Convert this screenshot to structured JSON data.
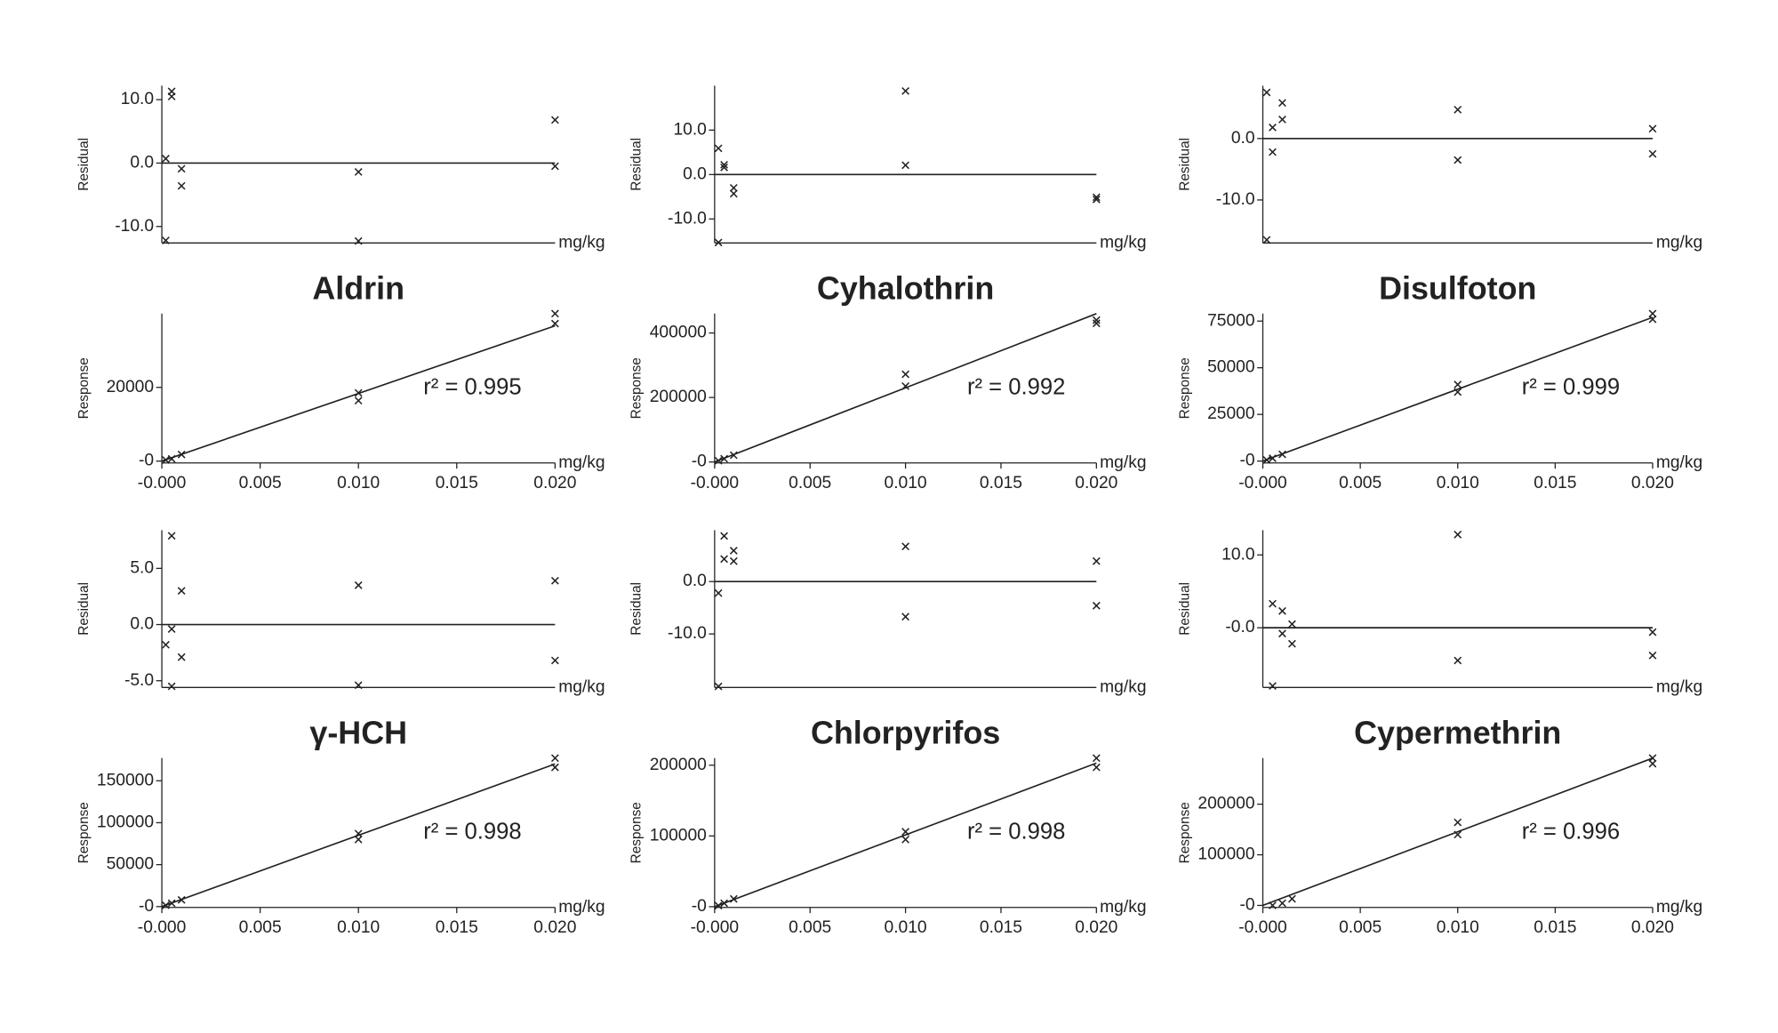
{
  "chart_data": [
    {
      "type": "scatter",
      "xlabel": "mg/kg",
      "ylabel": "Residual",
      "xlim": [
        0,
        0.02
      ],
      "ylim": [
        -12.6,
        12.2
      ],
      "yticks": [
        {
          "value": 10,
          "label": "10.0"
        },
        {
          "value": 0,
          "label": "0.0"
        },
        {
          "value": -10,
          "label": "-10.0"
        }
      ],
      "series": [
        {
          "color": "#222",
          "x": [
            0.0002,
            0.0002,
            0.0005,
            0.0005,
            0.001,
            0.001,
            0.01,
            0.01,
            0.02,
            0.02
          ],
          "values": [
            0.7,
            -12.2,
            11.3,
            10.5,
            -0.9,
            -3.6,
            -1.4,
            -12.3,
            6.8,
            -0.5
          ]
        }
      ],
      "fit": {
        "x": [
          0,
          0.02
        ],
        "values": [
          0,
          0
        ]
      }
    },
    {
      "type": "scatter",
      "title": "Aldrin",
      "annotation": "r² = 0.995",
      "xlabel": "mg/kg",
      "ylabel": "Response",
      "xlim": [
        0,
        0.02
      ],
      "ylim": [
        -500,
        40000
      ],
      "xticks": [
        {
          "value": 0,
          "label": "-0.000"
        },
        {
          "value": 0.005,
          "label": "0.005"
        },
        {
          "value": 0.01,
          "label": "0.010"
        },
        {
          "value": 0.015,
          "label": "0.015"
        },
        {
          "value": 0.02,
          "label": "0.020"
        }
      ],
      "yticks": [
        {
          "value": 0,
          "label": "-0"
        },
        20000
      ],
      "series": [
        {
          "color": "#222",
          "x": [
            0.0002,
            0.0005,
            0.001,
            0.01,
            0.01,
            0.02,
            0.02
          ],
          "values": [
            300,
            600,
            1800,
            16400,
            18500,
            37300,
            40000
          ]
        }
      ],
      "fit": {
        "x": [
          0,
          0.02
        ],
        "values": [
          0,
          36700
        ]
      }
    },
    {
      "type": "scatter",
      "xlabel": "mg/kg",
      "ylabel": "Residual",
      "xlim": [
        0,
        0.02
      ],
      "ylim": [
        -15.4,
        20
      ],
      "yticks": [
        {
          "value": 10,
          "label": "10.0"
        },
        {
          "value": 0,
          "label": "0.0"
        },
        {
          "value": -10,
          "label": "-10.0"
        }
      ],
      "series": [
        {
          "color": "#222",
          "x": [
            0.0002,
            0.0002,
            0.0005,
            0.0005,
            0.001,
            0.001,
            0.01,
            0.01,
            0.02,
            0.02
          ],
          "values": [
            5.9,
            -15.3,
            2.2,
            1.6,
            -3,
            -4.3,
            18.8,
            2.1,
            -5.1,
            -5.6
          ]
        }
      ],
      "fit": {
        "x": [
          0,
          0.02
        ],
        "values": [
          0,
          0
        ]
      }
    },
    {
      "type": "scatter",
      "title": "Cyhalothrin",
      "annotation": "r² = 0.992",
      "xlabel": "mg/kg",
      "ylabel": "Response",
      "xlim": [
        0,
        0.02
      ],
      "ylim": [
        -3000,
        460000
      ],
      "xticks": [
        {
          "value": 0,
          "label": "-0.000"
        },
        {
          "value": 0.005,
          "label": "0.005"
        },
        {
          "value": 0.01,
          "label": "0.010"
        },
        {
          "value": 0.015,
          "label": "0.015"
        },
        {
          "value": 0.02,
          "label": "0.020"
        }
      ],
      "yticks": [
        {
          "value": 0,
          "label": "-0"
        },
        200000,
        400000
      ],
      "series": [
        {
          "color": "#222",
          "x": [
            0.0002,
            0.0005,
            0.001,
            0.01,
            0.01,
            0.02,
            0.02
          ],
          "values": [
            4000,
            10000,
            21000,
            235000,
            272000,
            430000,
            440000
          ]
        }
      ],
      "fit": {
        "x": [
          0,
          0.02
        ],
        "values": [
          0,
          460000
        ]
      }
    },
    {
      "type": "scatter",
      "xlabel": "mg/kg",
      "ylabel": "Residual",
      "xlim": [
        0,
        0.02
      ],
      "ylim": [
        -17,
        8.6
      ],
      "yticks": [
        {
          "value": 0,
          "label": "0.0"
        },
        {
          "value": -10,
          "label": "-10.0"
        }
      ],
      "series": [
        {
          "color": "#222",
          "x": [
            0.0002,
            0.0002,
            0.0005,
            0.0005,
            0.001,
            0.001,
            0.01,
            0.01,
            0.02,
            0.02
          ],
          "values": [
            7.5,
            -16.5,
            1.8,
            -2.2,
            5.8,
            3.1,
            4.7,
            -3.5,
            1.6,
            -2.5
          ]
        }
      ],
      "fit": {
        "x": [
          0,
          0.02
        ],
        "values": [
          0,
          0
        ]
      }
    },
    {
      "type": "scatter",
      "title": "Disulfoton",
      "annotation": "r² = 0.999",
      "xlabel": "mg/kg",
      "ylabel": "Response",
      "xlim": [
        0,
        0.02
      ],
      "ylim": [
        -1000,
        79000
      ],
      "xticks": [
        {
          "value": 0,
          "label": "-0.000"
        },
        {
          "value": 0.005,
          "label": "0.005"
        },
        {
          "value": 0.01,
          "label": "0.010"
        },
        {
          "value": 0.015,
          "label": "0.015"
        },
        {
          "value": 0.02,
          "label": "0.020"
        }
      ],
      "yticks": [
        {
          "value": 0,
          "label": "-0"
        },
        25000,
        50000,
        75000
      ],
      "series": [
        {
          "color": "#222",
          "x": [
            0.0002,
            0.0005,
            0.001,
            0.01,
            0.01,
            0.02,
            0.02
          ],
          "values": [
            600,
            1500,
            3600,
            37000,
            41000,
            76000,
            79000
          ]
        }
      ],
      "fit": {
        "x": [
          0,
          0.02
        ],
        "values": [
          0,
          77000
        ]
      }
    },
    {
      "type": "scatter",
      "xlabel": "mg/kg",
      "ylabel": "Residual",
      "xlim": [
        0,
        0.02
      ],
      "ylim": [
        -5.6,
        8.4
      ],
      "yticks": [
        {
          "value": 5,
          "label": "5.0"
        },
        {
          "value": 0,
          "label": "0.0"
        },
        {
          "value": -5,
          "label": "-5.0"
        }
      ],
      "series": [
        {
          "color": "#222",
          "x": [
            0.0002,
            0.0005,
            0.0005,
            0.0005,
            0.001,
            0.001,
            0.01,
            0.01,
            0.02,
            0.02
          ],
          "values": [
            -1.8,
            7.9,
            -0.4,
            -5.5,
            3.0,
            -2.9,
            3.5,
            -5.4,
            3.9,
            -3.2
          ]
        }
      ],
      "fit": {
        "x": [
          0,
          0.02
        ],
        "values": [
          0,
          0
        ]
      }
    },
    {
      "type": "scatter",
      "title": "γ-HCH",
      "annotation": "r² = 0.998",
      "xlabel": "mg/kg",
      "ylabel": "Response",
      "xlim": [
        0,
        0.02
      ],
      "ylim": [
        -1000,
        177000
      ],
      "xticks": [
        {
          "value": 0,
          "label": "-0.000"
        },
        {
          "value": 0.005,
          "label": "0.005"
        },
        {
          "value": 0.01,
          "label": "0.010"
        },
        {
          "value": 0.015,
          "label": "0.015"
        },
        {
          "value": 0.02,
          "label": "0.020"
        }
      ],
      "yticks": [
        {
          "value": 0,
          "label": "-0"
        },
        50000,
        100000,
        150000
      ],
      "series": [
        {
          "color": "#222",
          "x": [
            0.0002,
            0.0005,
            0.001,
            0.01,
            0.01,
            0.02,
            0.02
          ],
          "values": [
            1500,
            4000,
            8000,
            80000,
            87000,
            166000,
            177000
          ]
        }
      ],
      "fit": {
        "x": [
          0,
          0.02
        ],
        "values": [
          0,
          170000
        ]
      }
    },
    {
      "type": "scatter",
      "xlabel": "mg/kg",
      "ylabel": "Residual",
      "xlim": [
        0,
        0.02
      ],
      "ylim": [
        -20.2,
        9.8
      ],
      "yticks": [
        {
          "value": 0,
          "label": "0.0"
        },
        {
          "value": -10,
          "label": "-10.0"
        }
      ],
      "series": [
        {
          "color": "#222",
          "x": [
            0.0002,
            0.0002,
            0.0005,
            0.0005,
            0.001,
            0.001,
            0.01,
            0.01,
            0.02,
            0.02
          ],
          "values": [
            -2.2,
            -20,
            8.7,
            4.3,
            5.9,
            3.9,
            6.7,
            -6.7,
            3.9,
            -4.6
          ]
        }
      ],
      "fit": {
        "x": [
          0,
          0.02
        ],
        "values": [
          0,
          0
        ]
      }
    },
    {
      "type": "scatter",
      "title": "Chlorpyrifos",
      "annotation": "r² = 0.998",
      "xlabel": "mg/kg",
      "ylabel": "Response",
      "xlim": [
        0,
        0.02
      ],
      "ylim": [
        -1000,
        210000
      ],
      "xticks": [
        {
          "value": 0,
          "label": "-0.000"
        },
        {
          "value": 0.005,
          "label": "0.005"
        },
        {
          "value": 0.01,
          "label": "0.010"
        },
        {
          "value": 0.015,
          "label": "0.015"
        },
        {
          "value": 0.02,
          "label": "0.020"
        }
      ],
      "yticks": [
        {
          "value": 0,
          "label": "-0"
        },
        100000,
        200000
      ],
      "series": [
        {
          "color": "#222",
          "x": [
            0.0002,
            0.0005,
            0.001,
            0.01,
            0.01,
            0.02,
            0.02
          ],
          "values": [
            1500,
            5000,
            11000,
            95000,
            106000,
            197000,
            210000
          ]
        }
      ],
      "fit": {
        "x": [
          0,
          0.02
        ],
        "values": [
          0,
          203000
        ]
      }
    },
    {
      "type": "scatter",
      "xlabel": "mg/kg",
      "ylabel": "Residual",
      "xlim": [
        0,
        0.02
      ],
      "ylim": [
        -8.2,
        13.4
      ],
      "yticks": [
        {
          "value": 10,
          "label": "10.0"
        },
        {
          "value": 0,
          "label": "-0.0"
        }
      ],
      "series": [
        {
          "color": "#222",
          "x": [
            0.0005,
            0.0005,
            0.001,
            0.001,
            0.0015,
            0.0015,
            0.01,
            0.01,
            0.02,
            0.02
          ],
          "values": [
            3.3,
            -8,
            2.3,
            -0.8,
            0.5,
            -2.2,
            12.8,
            -4.5,
            -0.6,
            -3.8
          ]
        }
      ],
      "fit": {
        "x": [
          0,
          0.02
        ],
        "values": [
          0,
          0
        ]
      }
    },
    {
      "type": "scatter",
      "title": "Cypermethrin",
      "annotation": "r² = 0.996",
      "xlabel": "mg/kg",
      "ylabel": "Response",
      "xlim": [
        0,
        0.02
      ],
      "ylim": [
        -4000,
        291000
      ],
      "xticks": [
        {
          "value": 0,
          "label": "-0.000"
        },
        {
          "value": 0.005,
          "label": "0.005"
        },
        {
          "value": 0.01,
          "label": "0.010"
        },
        {
          "value": 0.015,
          "label": "0.015"
        },
        {
          "value": 0.02,
          "label": "0.020"
        }
      ],
      "yticks": [
        {
          "value": 0,
          "label": "-0"
        },
        100000,
        200000
      ],
      "series": [
        {
          "color": "#222",
          "x": [
            0.0005,
            0.001,
            0.0015,
            0.01,
            0.01,
            0.02,
            0.02
          ],
          "values": [
            0,
            4400,
            13000,
            140000,
            164000,
            280000,
            291000
          ]
        }
      ],
      "fit": {
        "x": [
          0,
          0.02
        ],
        "values": [
          0,
          291000
        ]
      }
    }
  ]
}
